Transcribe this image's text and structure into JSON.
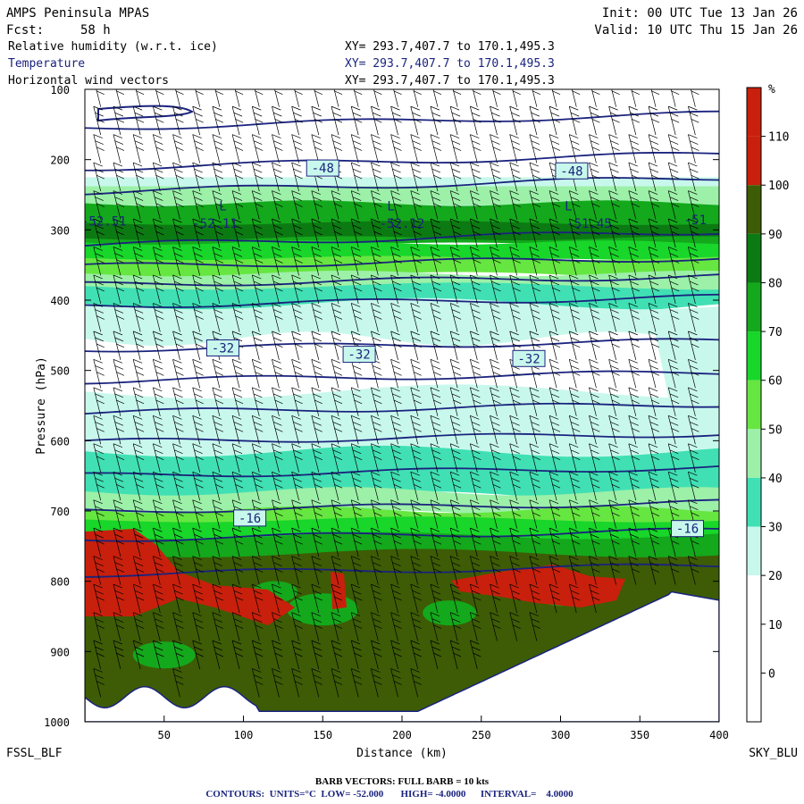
{
  "header": {
    "model": "AMPS Peninsula MPAS",
    "fcst_label": "Fcst:",
    "fcst_value": "58 h",
    "init": "Init: 00 UTC Tue 13 Jan 26",
    "valid": "Valid: 10 UTC Thu 15 Jan 26",
    "fields": [
      {
        "name": "Relative humidity (w.r.t. ice)",
        "xy": "XY= 293.7,407.7 to 170.1,495.3",
        "color": "#000000"
      },
      {
        "name": "Temperature",
        "xy": "XY= 293.7,407.7 to 170.1,495.3",
        "color": "#1a237e"
      },
      {
        "name": "Horizontal wind vectors",
        "xy": "XY= 293.7,407.7 to 170.1,495.3",
        "color": "#000000"
      }
    ]
  },
  "footer": {
    "left_station": "FSSL_BLF",
    "right_station": "SKY_BLU",
    "barb_note": "BARB VECTORS:  FULL BARB = 10 kts",
    "contours": "CONTOURS:  UNITS=°C  LOW= -52.000       HIGH= -4.0000      INTERVAL=    4.0000"
  },
  "colors": {
    "red": "#c8200c",
    "olive": "#3d5c05",
    "dkgreen": "#0c7a12",
    "green": "#14a81c",
    "ltgreen": "#18d62a",
    "lime": "#66e640",
    "mint": "#9cf0a8",
    "aqua": "#40e0b4",
    "paleaqua": "#c8f8ec",
    "contour": "#1a237e"
  },
  "chart_data": {
    "type": "heatmap",
    "xlabel": "Distance (km)",
    "ylabel": "Pressure (hPa)",
    "xlim": [
      0,
      400
    ],
    "ylim": [
      100,
      1000
    ],
    "x_ticks": [
      50,
      100,
      150,
      200,
      250,
      300,
      350,
      400
    ],
    "y_ticks": [
      100,
      200,
      300,
      400,
      500,
      600,
      700,
      800,
      900,
      1000
    ],
    "colorbar": {
      "unit": "%",
      "labels": [
        0,
        10,
        20,
        30,
        40,
        50,
        60,
        70,
        80,
        90,
        100,
        110
      ],
      "colors": [
        "#ffffff",
        "#ffffff",
        "#ffffff",
        "#c8f8ec",
        "#40e0b4",
        "#9cf0a8",
        "#66e640",
        "#18d62a",
        "#14a81c",
        "#0c7a12",
        "#3d5c05",
        "#c8200c"
      ]
    },
    "temperature_labels": [
      {
        "text": "-48",
        "x": 150,
        "p": 212
      },
      {
        "text": "-48",
        "x": 307,
        "p": 216
      },
      {
        "text": "-32",
        "x": 87,
        "p": 468
      },
      {
        "text": "-32",
        "x": 173,
        "p": 477
      },
      {
        "text": "-32",
        "x": 280,
        "p": 483
      },
      {
        "text": "-16",
        "x": 104,
        "p": 710
      },
      {
        "text": "-16",
        "x": 380,
        "p": 725
      }
    ],
    "min_labels": [
      {
        "text": "L",
        "x": 87,
        "p": 272
      },
      {
        "text": "-52.11",
        "x": 82,
        "p": 297
      },
      {
        "text": "L",
        "x": 193,
        "p": 272
      },
      {
        "text": "-52.12",
        "x": 200,
        "p": 297
      },
      {
        "text": "L",
        "x": 305,
        "p": 272
      },
      {
        "text": "-51.45",
        "x": 318,
        "p": 297
      },
      {
        "text": "-52.51",
        "x": 12,
        "p": 294
      },
      {
        "text": "-51",
        "x": 385,
        "p": 292
      }
    ]
  }
}
